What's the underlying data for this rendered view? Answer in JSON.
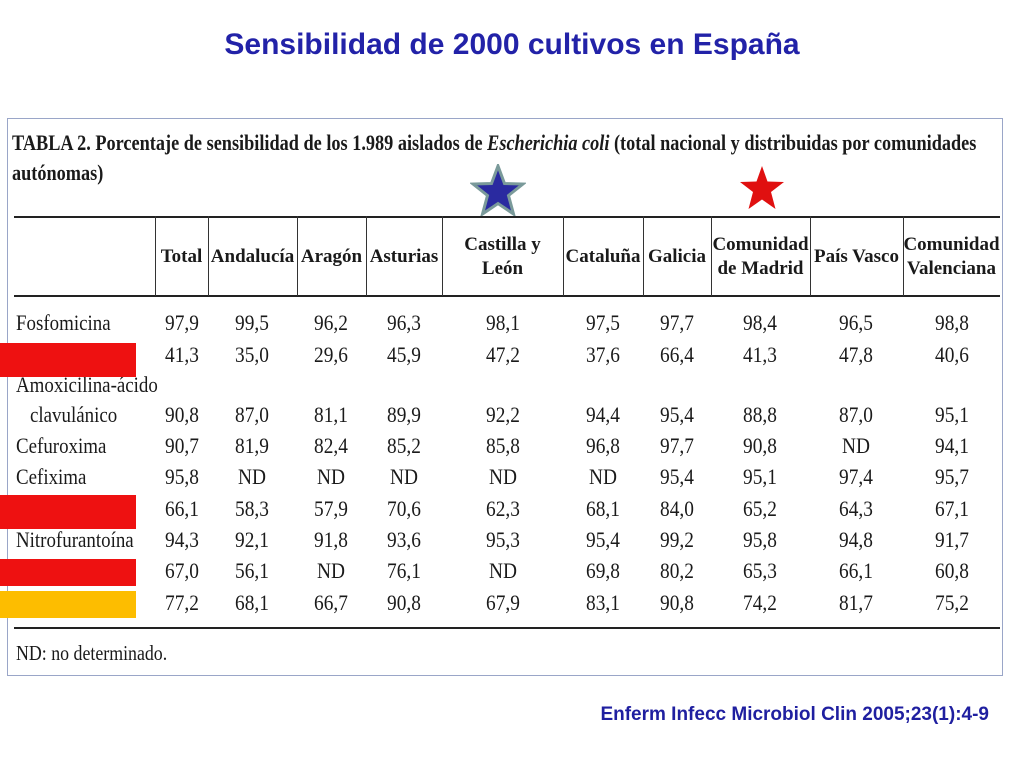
{
  "title": "Sensibilidad de 2000 cultivos en España",
  "table": {
    "caption_line1_prefix": "TABLA 2. Porcentaje de sensibilidad de los 1.989 aislados de ",
    "caption_line1_italic": "Escherichia coli",
    "caption_line1_suffix": " (total nacional y distribuidas por comunidades",
    "caption_line2": "autónomas)",
    "columns": [
      [
        "Total"
      ],
      [
        "Andalucía"
      ],
      [
        "Aragón"
      ],
      [
        "Asturias"
      ],
      [
        "Castilla y León"
      ],
      [
        "Cataluña"
      ],
      [
        "Galicia"
      ],
      [
        "Comunidad",
        "de Madrid"
      ],
      [
        "País Vasco"
      ],
      [
        "Comunidad",
        "Valenciana"
      ]
    ],
    "rows": [
      {
        "label": "Fosfomicina",
        "values": [
          "97,9",
          "99,5",
          "96,2",
          "96,3",
          "98,1",
          "97,5",
          "97,7",
          "98,4",
          "96,5",
          "98,8"
        ]
      },
      {
        "label": "",
        "values": [
          "41,3",
          "35,0",
          "29,6",
          "45,9",
          "47,2",
          "37,6",
          "66,4",
          "41,3",
          "47,8",
          "40,6"
        ]
      },
      {
        "label": "Amoxicilina-ácido",
        "label2": "clavulánico",
        "values": [
          "90,8",
          "87,0",
          "81,1",
          "89,9",
          "92,2",
          "94,4",
          "95,4",
          "88,8",
          "87,0",
          "95,1"
        ]
      },
      {
        "label": "Cefuroxima",
        "values": [
          "90,7",
          "81,9",
          "82,4",
          "85,2",
          "85,8",
          "96,8",
          "97,7",
          "90,8",
          "ND",
          "94,1"
        ]
      },
      {
        "label": "Cefixima",
        "values": [
          "95,8",
          "ND",
          "ND",
          "ND",
          "ND",
          "ND",
          "95,4",
          "95,1",
          "97,4",
          "95,7"
        ]
      },
      {
        "label": "",
        "values": [
          "66,1",
          "58,3",
          "57,9",
          "70,6",
          "62,3",
          "68,1",
          "84,0",
          "65,2",
          "64,3",
          "67,1"
        ]
      },
      {
        "label": "Nitrofurantoína",
        "values": [
          "94,3",
          "92,1",
          "91,8",
          "93,6",
          "95,3",
          "95,4",
          "99,2",
          "95,8",
          "94,8",
          "91,7"
        ]
      },
      {
        "label": "",
        "values": [
          "67,0",
          "56,1",
          "ND",
          "76,1",
          "ND",
          "69,8",
          "80,2",
          "65,3",
          "66,1",
          "60,8"
        ]
      },
      {
        "label": "",
        "values": [
          "77,2",
          "68,1",
          "66,7",
          "90,8",
          "67,9",
          "83,1",
          "90,8",
          "74,2",
          "81,7",
          "75,2"
        ]
      }
    ],
    "footnote": "ND: no determinado."
  },
  "markers": [
    {
      "name": "blue-star",
      "color": "#2a2aa0"
    },
    {
      "name": "red-star",
      "color": "#e01010"
    }
  ],
  "highlight_colors": {
    "red": "#ee1111",
    "yellow": "#fdbd00"
  },
  "citation": "Enferm Infecc Microbiol Clin 2005;23(1):4-9"
}
